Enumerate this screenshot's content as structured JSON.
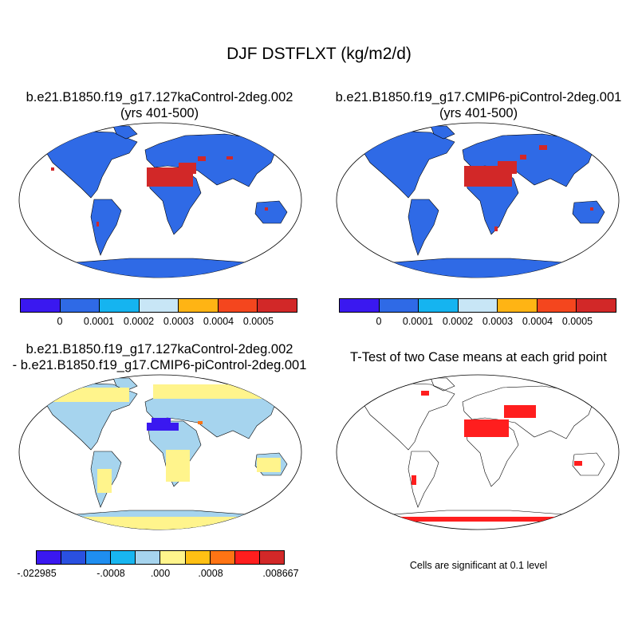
{
  "title": "DJF DSTFLXT (kg/m2/d)",
  "panels": [
    {
      "title_line1": "b.e21.B1850.f19_g17.127kaControl-2deg.002",
      "title_line2": "(yrs 401-500)"
    },
    {
      "title_line1": "b.e21.B1850.f19_g17.CMIP6-piControl-2deg.001",
      "title_line2": "(yrs 401-500)"
    },
    {
      "title_line1": "b.e21.B1850.f19_g17.127kaControl-2deg.002",
      "title_line2": "- b.e21.B1850.f19_g17.CMIP6-piControl-2deg.001"
    },
    {
      "title_line1": "T-Test of two Case means at each grid point",
      "title_line2": ""
    }
  ],
  "colorbar_top": {
    "colors": [
      "#3a18f0",
      "#2f6ae6",
      "#15b4f0",
      "#c8e6f6",
      "#ffb414",
      "#f4461e",
      "#d22828"
    ],
    "labels": [
      "0",
      "0.0001",
      "0.0002",
      "0.0003",
      "0.0004",
      "0.0005"
    ]
  },
  "colorbar_diff": {
    "colors": [
      "#3a18f0",
      "#2a50e0",
      "#1f8ef0",
      "#18b6f0",
      "#a6d4ee",
      "#fff48c",
      "#ffc014",
      "#ff7414",
      "#ff1e1e",
      "#d22828"
    ],
    "labels": [
      "-.022985",
      "-.0008",
      ".000",
      ".0008",
      ".008667"
    ]
  },
  "significance_note": "Cells are significant at 0.1 level",
  "colors": {
    "land_mean": "#2f6ae6",
    "desert_high": "#d22828",
    "diff_neutral": "#a6d4ee",
    "diff_positive": "#fff48c",
    "diff_negative": "#3a18f0",
    "signif": "#ff1e1e"
  }
}
